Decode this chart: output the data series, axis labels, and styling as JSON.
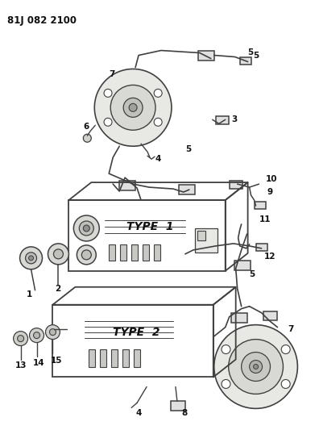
{
  "title": "81J 082 2100",
  "bg_color": "#ffffff",
  "line_color": "#404040",
  "text_color": "#111111",
  "type1_label": "TYPE  1",
  "type2_label": "TYPE  2",
  "figsize": [
    3.96,
    5.33
  ],
  "dpi": 100
}
